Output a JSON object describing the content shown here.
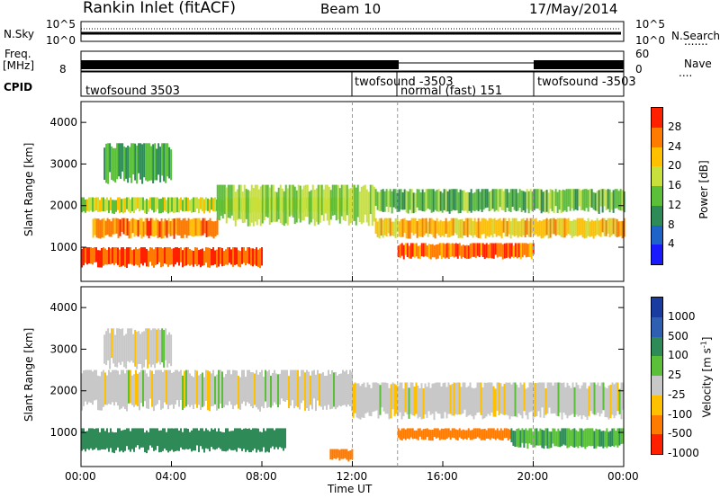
{
  "header": {
    "station": "Rankin Inlet (fitACF)",
    "beam": "Beam 10",
    "date": "17/May/2014"
  },
  "top_panels": {
    "nsky_label": "N.Sky",
    "nsky_tick_high": "10^5",
    "nsky_tick_low": "10^0",
    "nsearch_label": "N.Search",
    "nsearch_tick_high": "10^5",
    "nsearch_tick_low": "10^0",
    "freq_label": "Freq.",
    "freq_unit": "[MHz]",
    "freq_tick_high": "",
    "freq_tick_low": "8",
    "nave_label": "Nave",
    "nave_tick_high": "60",
    "nave_tick_low": "0",
    "cpid_label": "CPID"
  },
  "cpid_segments": [
    {
      "label": "twofsound 3503",
      "start": 0.0
    },
    {
      "label": "twofsound -3503",
      "start": 12.0
    },
    {
      "label": "normal (fast) 151",
      "start": 14.0
    },
    {
      "label": "twofsound -3503",
      "start": 20.0
    }
  ],
  "power_panel": {
    "ylabel": "Slant Range [km]",
    "yticks": [
      "1000",
      "2000",
      "3000",
      "4000"
    ],
    "cbar_label": "Power [dB]",
    "cbar_ticks": [
      "4",
      "8",
      "12",
      "16",
      "20",
      "24",
      "28"
    ],
    "cbar_colors": [
      "#1a1aff",
      "#1e64c8",
      "#2e8b57",
      "#5cbf3a",
      "#c8e03c",
      "#ffc000",
      "#ff7a00",
      "#ff2000"
    ]
  },
  "velocity_panel": {
    "ylabel": "Slant Range [km]",
    "yticks": [
      "1000",
      "2000",
      "3000",
      "4000"
    ],
    "cbar_label": "Velocity [m s-1]",
    "cbar_ticks": [
      "1000",
      "500",
      "100",
      "25",
      "-25",
      "-100",
      "-500",
      "-1000"
    ],
    "cbar_colors": [
      "#1a3ca0",
      "#2e5fb0",
      "#2e8b57",
      "#5cbf3a",
      "#c8c8c8",
      "#ffc000",
      "#ff7a00",
      "#ff2000"
    ]
  },
  "xaxis": {
    "label": "Time UT",
    "ticks": [
      "00:00",
      "04:00",
      "08:00",
      "12:00",
      "16:00",
      "20:00",
      "00:00"
    ]
  },
  "chart_data": {
    "type": "heatmap",
    "title": "Rankin Inlet (fitACF) Beam 10 17/May/2014",
    "xlabel": "Time UT",
    "ylabel": "Slant Range [km]",
    "xlim_hours": [
      0,
      24
    ],
    "ylim_km": [
      180,
      4500
    ],
    "grid": false,
    "legend": "colorbars right",
    "power_bands_db": [
      {
        "start": 0.0,
        "end": 8.0,
        "range_km": [
          500,
          1000
        ],
        "power": 28
      },
      {
        "start": 0.5,
        "end": 6.0,
        "range_km": [
          1200,
          1700
        ],
        "power": 26
      },
      {
        "start": 0.0,
        "end": 12.0,
        "range_km": [
          1800,
          2200
        ],
        "power": 18
      },
      {
        "start": 6.0,
        "end": 13.0,
        "range_km": [
          1500,
          2500
        ],
        "power": 16
      },
      {
        "start": 13.0,
        "end": 24.0,
        "range_km": [
          1200,
          1700
        ],
        "power": 22
      },
      {
        "start": 13.0,
        "end": 24.0,
        "range_km": [
          1800,
          2400
        ],
        "power": 14
      },
      {
        "start": 14.0,
        "end": 20.0,
        "range_km": [
          700,
          1100
        ],
        "power": 26
      },
      {
        "start": 1.0,
        "end": 4.0,
        "range_km": [
          2500,
          3500
        ],
        "power": 12
      }
    ],
    "velocity_bands_ms": [
      {
        "start": 0.0,
        "end": 12.0,
        "range_km": [
          1500,
          2500
        ],
        "velocity": 0
      },
      {
        "start": 12.0,
        "end": 24.0,
        "range_km": [
          1300,
          2200
        ],
        "velocity": 0
      },
      {
        "start": 0.0,
        "end": 9.0,
        "range_km": [
          500,
          1100
        ],
        "velocity": 150
      },
      {
        "start": 11.0,
        "end": 12.0,
        "range_km": [
          300,
          600
        ],
        "velocity": -150
      },
      {
        "start": 14.0,
        "end": 19.0,
        "range_km": [
          800,
          1100
        ],
        "velocity": -150
      },
      {
        "start": 19.0,
        "end": 24.0,
        "range_km": [
          600,
          1100
        ],
        "velocity": 100
      },
      {
        "start": 1.0,
        "end": 4.0,
        "range_km": [
          2500,
          3500
        ],
        "velocity": 0
      }
    ]
  }
}
